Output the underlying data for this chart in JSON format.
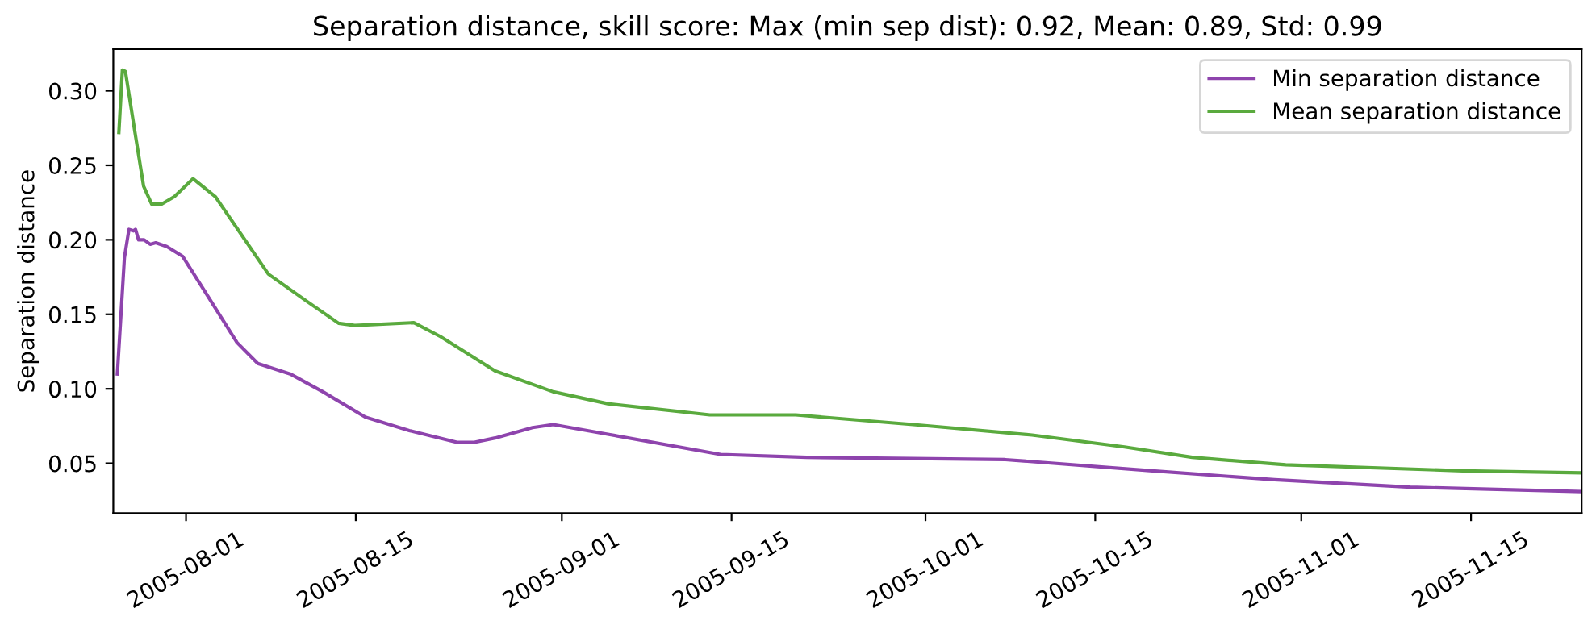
{
  "chart_data": {
    "type": "line",
    "title": "Separation distance, skill score: Max (min sep dist): 0.92, Mean: 0.89, Std: 0.99",
    "ylabel": "Separation distance",
    "series": [
      {
        "name": "Min separation distance",
        "color": "#8e44ad",
        "x": [
          "2005-07-26T08:00",
          "2005-07-26T22:00",
          "2005-07-27T07:00",
          "2005-07-27T16:00",
          "2005-07-27T20:00",
          "2005-07-28T02:00",
          "2005-07-28T13:00",
          "2005-07-29T01:00",
          "2005-07-29T12:00",
          "2005-07-30T10:00",
          "2005-07-31T17:00",
          "2005-08-02T12:00",
          "2005-08-05T05:00",
          "2005-08-06T22:00",
          "2005-08-09T14:00",
          "2005-08-12T07:00",
          "2005-08-15T19:00",
          "2005-08-19T10:00",
          "2005-08-23T10:00",
          "2005-08-24T17:00",
          "2005-08-26T12:00",
          "2005-08-29T14:00",
          "2005-08-31T07:00",
          "2005-09-04T19:00",
          "2005-09-14T02:00",
          "2005-09-21T05:00",
          "2005-10-07T14:00",
          "2005-10-19T17:00",
          "2005-10-29T19:00",
          "2005-11-10T00:00",
          "2005-11-24T03:00"
        ],
        "values": [
          0.11,
          0.188,
          0.207,
          0.206,
          0.207,
          0.2,
          0.2,
          0.197,
          0.198,
          0.1955,
          0.189,
          0.166,
          0.131,
          0.117,
          0.11,
          0.098,
          0.081,
          0.072,
          0.064,
          0.064,
          0.067,
          0.074,
          0.076,
          0.0695,
          0.056,
          0.054,
          0.0525,
          0.045,
          0.039,
          0.034,
          0.031
        ]
      },
      {
        "name": "Mean separation distance",
        "color": "#5aaa3e",
        "x": [
          "2005-07-26T11:00",
          "2005-07-26T18:00",
          "2005-07-27T00:00",
          "2005-07-27T18:00",
          "2005-07-28T12:00",
          "2005-07-29T04:00",
          "2005-07-30T00:00",
          "2005-07-31T01:00",
          "2005-08-01T14:00",
          "2005-08-03T10:00",
          "2005-08-07T19:00",
          "2005-08-10T22:00",
          "2005-08-13T14:00",
          "2005-08-14T22:00",
          "2005-08-19T19:00",
          "2005-08-22T00:00",
          "2005-08-26T12:00",
          "2005-08-29T14:00",
          "2005-08-31T07:00",
          "2005-09-04T19:00",
          "2005-09-13T05:00",
          "2005-09-20T07:00",
          "2005-09-30T00:00",
          "2005-10-09T19:00",
          "2005-10-17T10:00",
          "2005-10-23T00:00",
          "2005-10-30T17:00",
          "2005-11-14T07:00",
          "2005-11-24T03:00"
        ],
        "values": [
          0.272,
          0.314,
          0.313,
          0.274,
          0.236,
          0.224,
          0.224,
          0.229,
          0.241,
          0.229,
          0.177,
          0.159,
          0.144,
          0.1425,
          0.1444,
          0.135,
          0.112,
          0.103,
          0.098,
          0.09,
          0.0825,
          0.0825,
          0.076,
          0.069,
          0.061,
          0.054,
          0.049,
          0.045,
          0.0436
        ]
      }
    ],
    "xlim": [
      "2005-07-26T00:00",
      "2005-11-24T03:00"
    ],
    "xticks": [
      "2005-08-01",
      "2005-08-15",
      "2005-09-01",
      "2005-09-15",
      "2005-10-01",
      "2005-10-15",
      "2005-11-01",
      "2005-11-15"
    ],
    "ylim": [
      0.0165,
      0.328
    ],
    "yticks": [
      {
        "value": 0.05,
        "label": "0.05"
      },
      {
        "value": 0.1,
        "label": "0.10"
      },
      {
        "value": 0.15,
        "label": "0.15"
      },
      {
        "value": 0.2,
        "label": "0.20"
      },
      {
        "value": 0.25,
        "label": "0.25"
      },
      {
        "value": 0.3,
        "label": "0.30"
      }
    ],
    "legend": "top right",
    "grid": false,
    "line_style": "solid"
  }
}
